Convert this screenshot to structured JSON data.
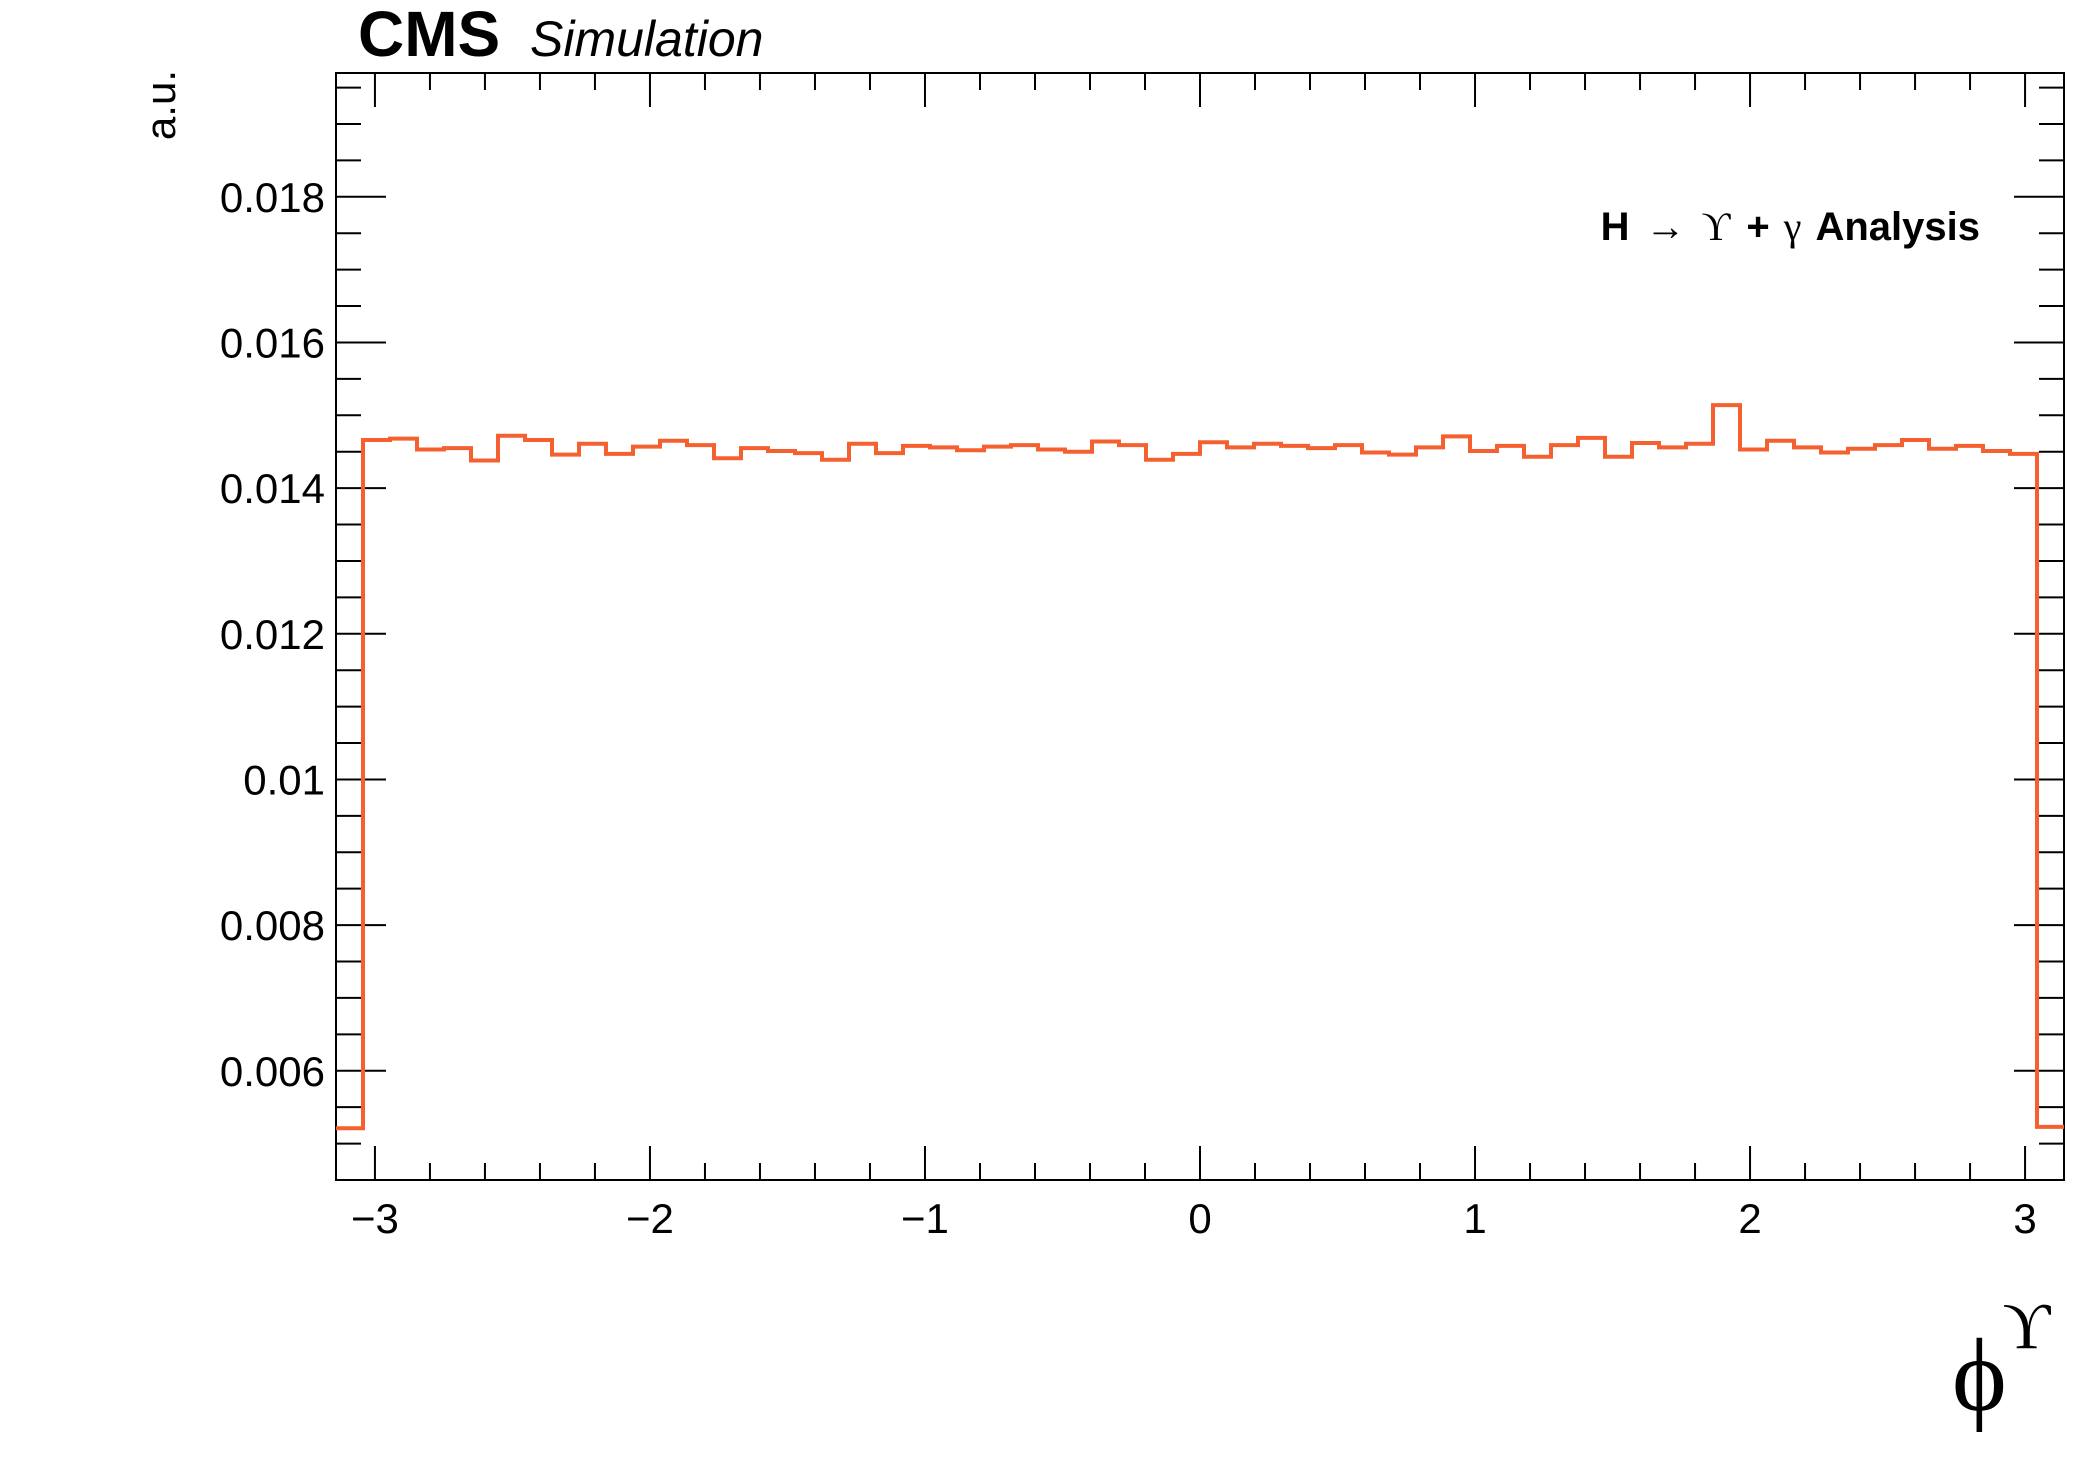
{
  "header": {
    "experiment": "CMS",
    "status": "Simulation"
  },
  "annotation": {
    "part1": "H",
    "arrow": "→",
    "upsilon": "ϒ",
    "plus": "+",
    "gamma": "γ",
    "part2": "Analysis"
  },
  "colors": {
    "histogram_line": "#f4602f",
    "axis": "#000000",
    "background": "#ffffff"
  },
  "chart_data": {
    "type": "histogram",
    "xlabel": "ϕ",
    "xlabel_superscript": "ϒ",
    "ylabel": "a.u.",
    "xlim": [
      -3.1416,
      3.1416
    ],
    "ylim": [
      0.0045,
      0.0197
    ],
    "grid": false,
    "x_ticks": [
      -3,
      -2,
      -1,
      0,
      1,
      2,
      3
    ],
    "x_tick_labels": [
      "−3",
      "−2",
      "−1",
      "0",
      "1",
      "2",
      "3"
    ],
    "y_ticks": [
      0.006,
      0.008,
      0.01,
      0.012,
      0.014,
      0.016,
      0.018
    ],
    "y_tick_labels": [
      "0.006",
      "0.008",
      "0.01",
      "0.012",
      "0.014",
      "0.016",
      "0.018"
    ],
    "bin_edges_range": [
      -3.1416,
      3.1416
    ],
    "n_bins": 64,
    "values": [
      0.00521,
      0.01466,
      0.01468,
      0.01453,
      0.01455,
      0.01438,
      0.01472,
      0.01466,
      0.01446,
      0.01461,
      0.01447,
      0.01457,
      0.01465,
      0.01459,
      0.01441,
      0.01455,
      0.01451,
      0.01448,
      0.01439,
      0.01461,
      0.01448,
      0.01458,
      0.01456,
      0.01452,
      0.01457,
      0.01459,
      0.01453,
      0.0145,
      0.01464,
      0.01459,
      0.01439,
      0.01447,
      0.01463,
      0.01456,
      0.01461,
      0.01458,
      0.01455,
      0.01459,
      0.01449,
      0.01446,
      0.01456,
      0.01471,
      0.01451,
      0.01458,
      0.01443,
      0.01459,
      0.01469,
      0.01443,
      0.01462,
      0.01456,
      0.01461,
      0.01514,
      0.01453,
      0.01465,
      0.01456,
      0.01449,
      0.01454,
      0.01459,
      0.01466,
      0.01454,
      0.01458,
      0.01451,
      0.01447,
      0.00523
    ]
  }
}
